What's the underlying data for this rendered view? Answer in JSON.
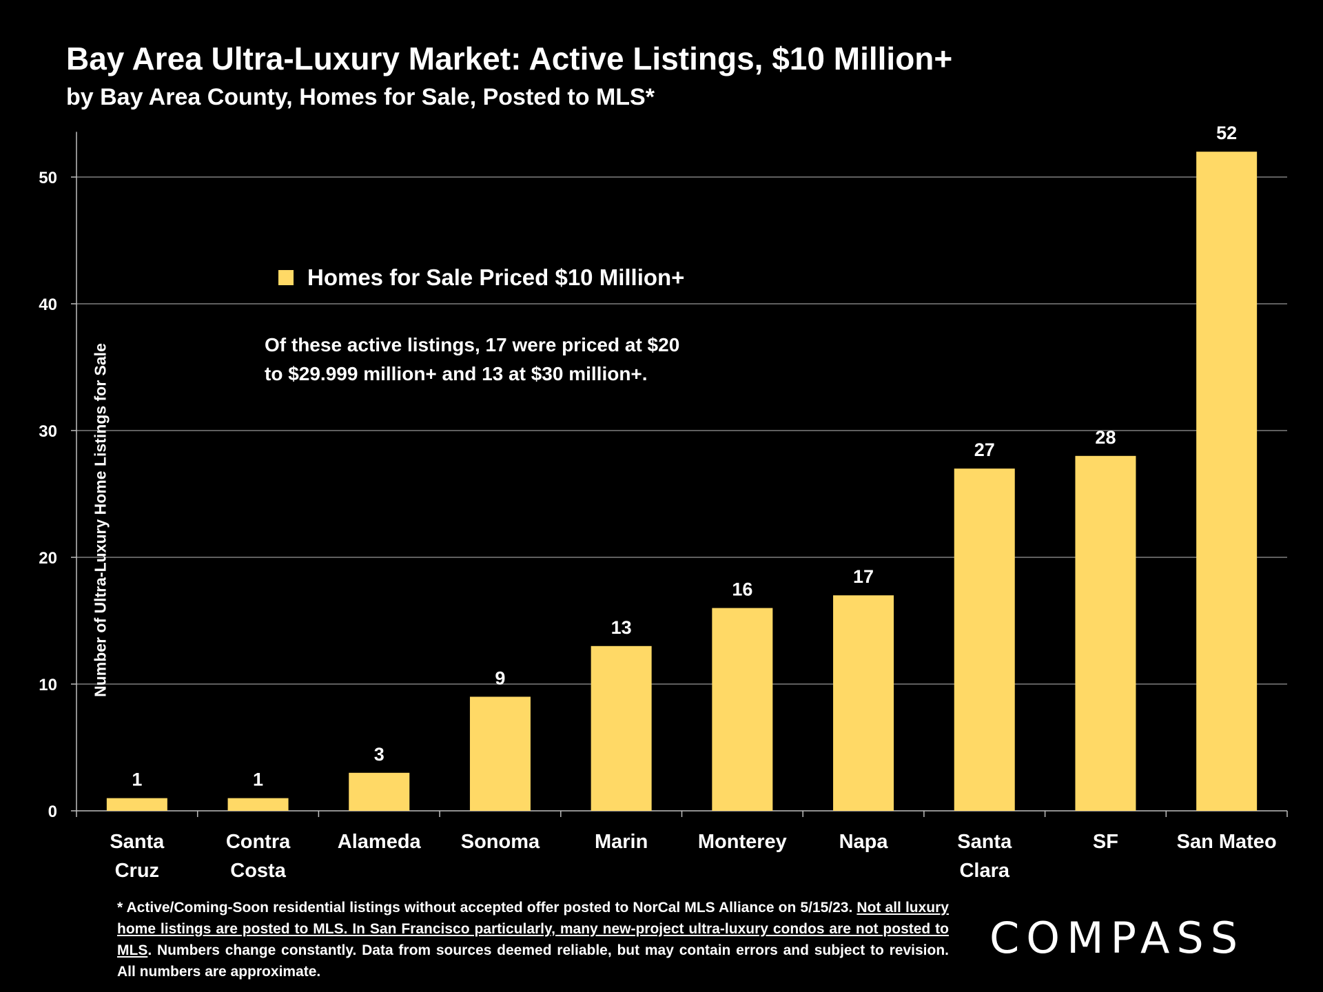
{
  "title": "Bay Area Ultra-Luxury Market: Active Listings, $10 Million+",
  "subtitle": "by Bay Area County, Homes for Sale, Posted to MLS*",
  "legend": {
    "label": "Homes for Sale Priced $10 Million+"
  },
  "annotation": {
    "line1": "Of these active listings, 17 were priced at $20",
    "line2": "to $29.999 million+ and 13 at $30 million+."
  },
  "footnote": {
    "part1": "* Active/Coming-Soon residential listings without accepted offer posted to NorCal MLS Alliance on 5/15/23.",
    "part2": "Not all luxury home listings are posted to MLS. In San Francisco particularly, many new-project ultra-luxury condos are not posted to MLS",
    "part3": ". Numbers change constantly. Data from sources deemed reliable, but may contain errors and subject to revision. All numbers are approximate."
  },
  "logo": "COMPASS",
  "colors": {
    "bar": "#FFD966",
    "background": "#000000",
    "grid": "#808080",
    "text": "#FFFFFF"
  },
  "chart_data": {
    "type": "bar",
    "title": "Bay Area Ultra-Luxury Market: Active Listings, $10 Million+",
    "xlabel": "",
    "ylabel": "Number of Ultra-Luxury Home Listings for Sale",
    "categories": [
      [
        "Santa",
        "Cruz"
      ],
      [
        "Contra",
        "Costa"
      ],
      [
        "Alameda"
      ],
      [
        "Sonoma"
      ],
      [
        "Marin"
      ],
      [
        "Monterey"
      ],
      [
        "Napa"
      ],
      [
        "Santa",
        "Clara"
      ],
      [
        "SF"
      ],
      [
        "San Mateo"
      ]
    ],
    "series": [
      {
        "name": "Homes for Sale Priced $10 Million+",
        "values": [
          1,
          1,
          3,
          9,
          13,
          16,
          17,
          27,
          28,
          52
        ]
      }
    ],
    "yticks": [
      0,
      10,
      20,
      30,
      40,
      50
    ],
    "ylim": [
      0,
      54
    ],
    "grid": true,
    "legend_position": "upper-left-inside"
  }
}
